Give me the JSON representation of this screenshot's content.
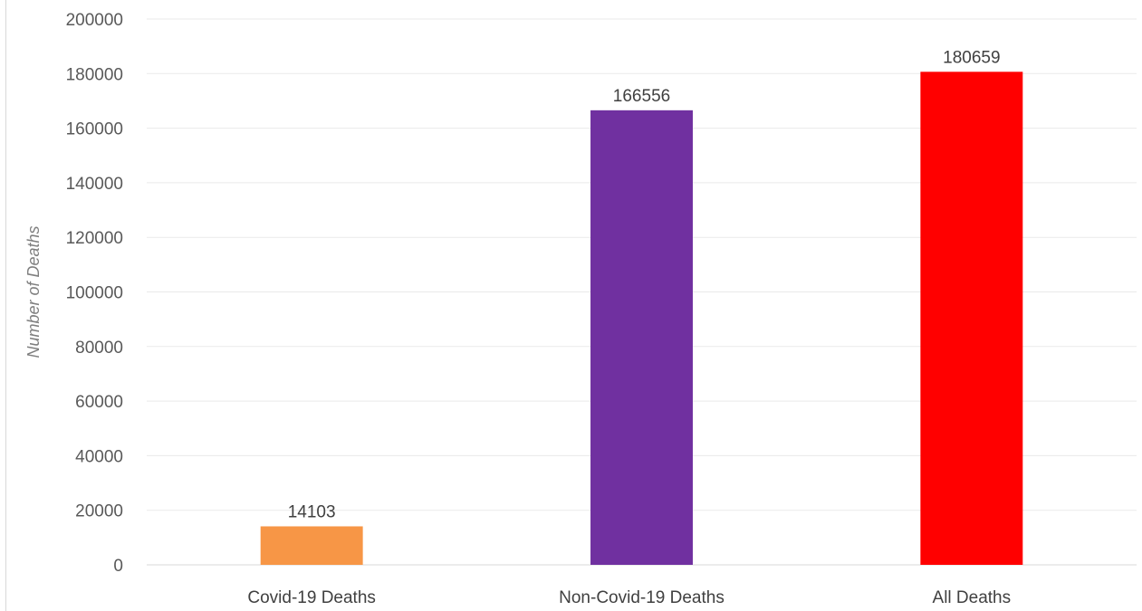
{
  "chart_data": {
    "type": "bar",
    "title": "",
    "xlabel": "",
    "ylabel": "Number of Deaths",
    "ylim": [
      0,
      200000
    ],
    "yticks": [
      0,
      20000,
      40000,
      60000,
      80000,
      100000,
      120000,
      140000,
      160000,
      180000,
      200000
    ],
    "ytick_labels": [
      "0",
      "20000",
      "40000",
      "60000",
      "80000",
      "100000",
      "120000",
      "140000",
      "160000",
      "180000",
      "200000"
    ],
    "grid": true,
    "legend": "none",
    "categories": [
      "Covid-19 Deaths",
      "Non-Covid-19 Deaths",
      "All Deaths"
    ],
    "values": [
      14103,
      166556,
      180659
    ],
    "data_labels": [
      "14103",
      "166556",
      "180659"
    ],
    "colors": [
      "#f79646",
      "#7030a0",
      "#ff0000"
    ]
  }
}
